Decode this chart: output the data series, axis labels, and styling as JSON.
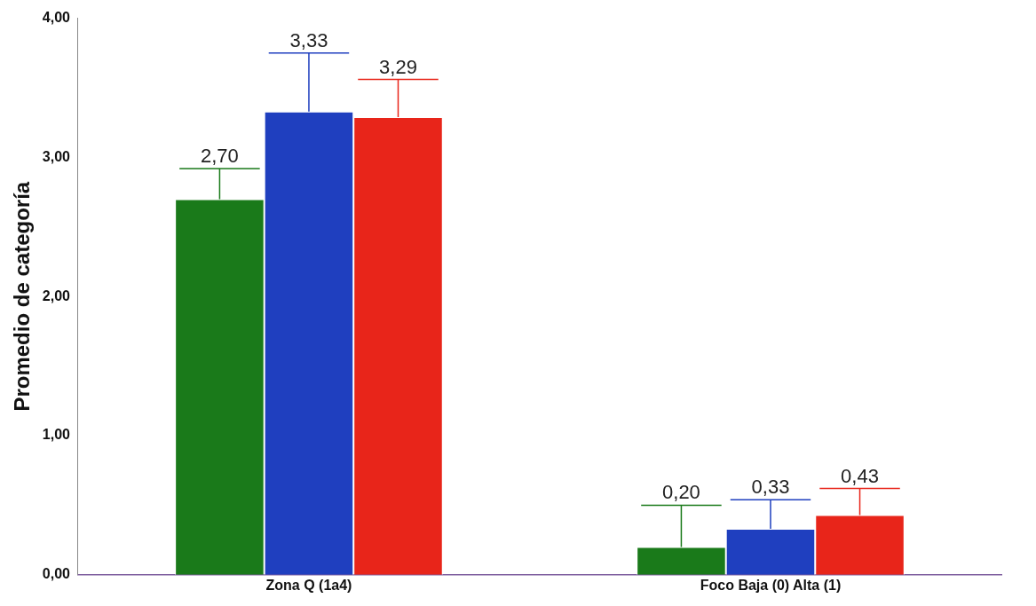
{
  "chart_data": {
    "type": "bar",
    "ylabel": "Promedio de categoría",
    "categories": [
      "Zona Q (1a4)",
      "Foco Baja (0) Alta (1)"
    ],
    "series": [
      {
        "color": "#1a7a1a",
        "values": [
          2.7,
          0.2
        ],
        "value_labels": [
          "2,70",
          "0,20"
        ],
        "errors": [
          [
            2.7,
            2.92
          ],
          [
            0.2,
            0.5
          ]
        ]
      },
      {
        "color": "#1f3fbf",
        "values": [
          3.33,
          0.33
        ],
        "value_labels": [
          "3,33",
          "0,33"
        ],
        "errors": [
          [
            3.33,
            3.75
          ],
          [
            0.33,
            0.54
          ]
        ]
      },
      {
        "color": "#e8251a",
        "values": [
          3.29,
          0.43
        ],
        "value_labels": [
          "3,29",
          "0,43"
        ],
        "errors": [
          [
            3.29,
            3.56
          ],
          [
            0.43,
            0.62
          ]
        ]
      }
    ],
    "ylim": [
      0,
      4
    ],
    "yticks": [
      {
        "value": 0,
        "label": "0,00"
      },
      {
        "value": 1,
        "label": "1,00"
      },
      {
        "value": 2,
        "label": "2,00"
      },
      {
        "value": 3,
        "label": "3,00"
      },
      {
        "value": 4,
        "label": "4,00"
      }
    ],
    "grid": false,
    "legend": false
  }
}
